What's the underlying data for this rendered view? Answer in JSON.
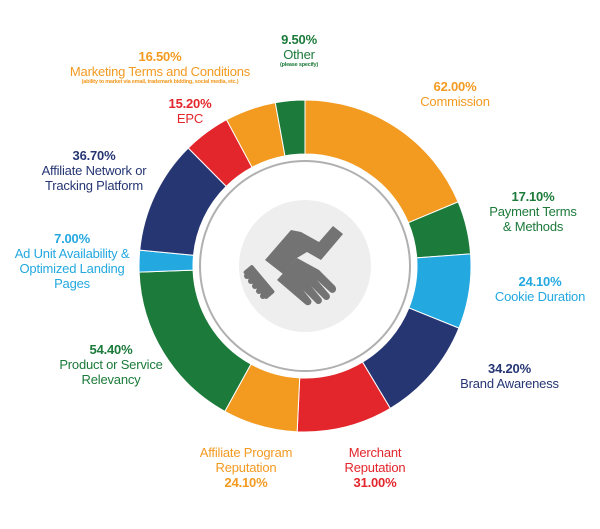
{
  "colors": {
    "orange": "#F39A21",
    "green": "#1C7A3A",
    "blue": "#23A8E0",
    "navy": "#263673",
    "red": "#E3262B",
    "handshake": "#737373",
    "center_bg": "#EEEEEE"
  },
  "center_icon": "handshake-icon",
  "chart_data": {
    "type": "pie",
    "style": "donut",
    "title": "",
    "segments": [
      {
        "name": "Commission",
        "value": 62.0,
        "label": "62.00%",
        "color": "orange"
      },
      {
        "name": "Payment Terms & Methods",
        "value": 17.1,
        "label": "17.10%",
        "color": "green"
      },
      {
        "name": "Cookie Duration",
        "value": 24.1,
        "label": "24.10%",
        "color": "blue"
      },
      {
        "name": "Brand Awareness",
        "value": 34.2,
        "label": "34.20%",
        "color": "navy"
      },
      {
        "name": "Merchant Reputation",
        "value": 31.0,
        "label": "31.00%",
        "color": "red"
      },
      {
        "name": "Affiliate Program Reputation",
        "value": 24.1,
        "label": "24.10%",
        "color": "orange"
      },
      {
        "name": "Product or Service Relevancy",
        "value": 54.4,
        "label": "54.40%",
        "color": "green"
      },
      {
        "name": "Ad Unit Availability & Optimized Landing Pages",
        "value": 7.0,
        "label": "7.00%",
        "color": "blue"
      },
      {
        "name": "Affiliate Network or Tracking Platform",
        "value": 36.7,
        "label": "36.70%",
        "color": "navy"
      },
      {
        "name": "EPC",
        "value": 15.2,
        "label": "15.20%",
        "color": "red"
      },
      {
        "name": "Marketing Terms and Conditions",
        "value": 16.5,
        "label": "16.50%",
        "color": "orange",
        "note": "(ability to market via email, trademark bidding, social media, etc.)"
      },
      {
        "name": "Other",
        "value": 9.5,
        "label": "9.50%",
        "color": "green",
        "note": "(please specify)"
      }
    ]
  },
  "labels": {
    "commission": {
      "value": "62.00%",
      "lines": [
        "Commission"
      ]
    },
    "payment": {
      "value": "17.10%",
      "lines": [
        "Payment Terms",
        "& Methods"
      ]
    },
    "cookie": {
      "value": "24.10%",
      "lines": [
        "Cookie Duration"
      ]
    },
    "brand": {
      "value": "34.20%",
      "lines": [
        "Brand Awareness"
      ]
    },
    "merchant": {
      "value": "31.00%",
      "lines": [
        "Merchant",
        "Reputation"
      ]
    },
    "affprog": {
      "value": "24.10%",
      "lines": [
        "Affiliate Program",
        "Reputation"
      ]
    },
    "product": {
      "value": "54.40%",
      "lines": [
        "Product or Service",
        "Relevancy"
      ]
    },
    "adunit": {
      "value": "7.00%",
      "lines": [
        "Ad Unit Availability &",
        "Optimized Landing",
        "Pages"
      ]
    },
    "network": {
      "value": "36.70%",
      "lines": [
        "Affiliate Network or",
        "Tracking Platform"
      ]
    },
    "epc": {
      "value": "15.20%",
      "lines": [
        "EPC"
      ]
    },
    "marketing": {
      "value": "16.50%",
      "lines": [
        "Marketing Terms and Conditions"
      ],
      "note": "(ability to market via email, trademark bidding, social media, etc.)"
    },
    "other": {
      "value": "9.50%",
      "lines": [
        "Other"
      ],
      "note": "(please specify)"
    }
  }
}
